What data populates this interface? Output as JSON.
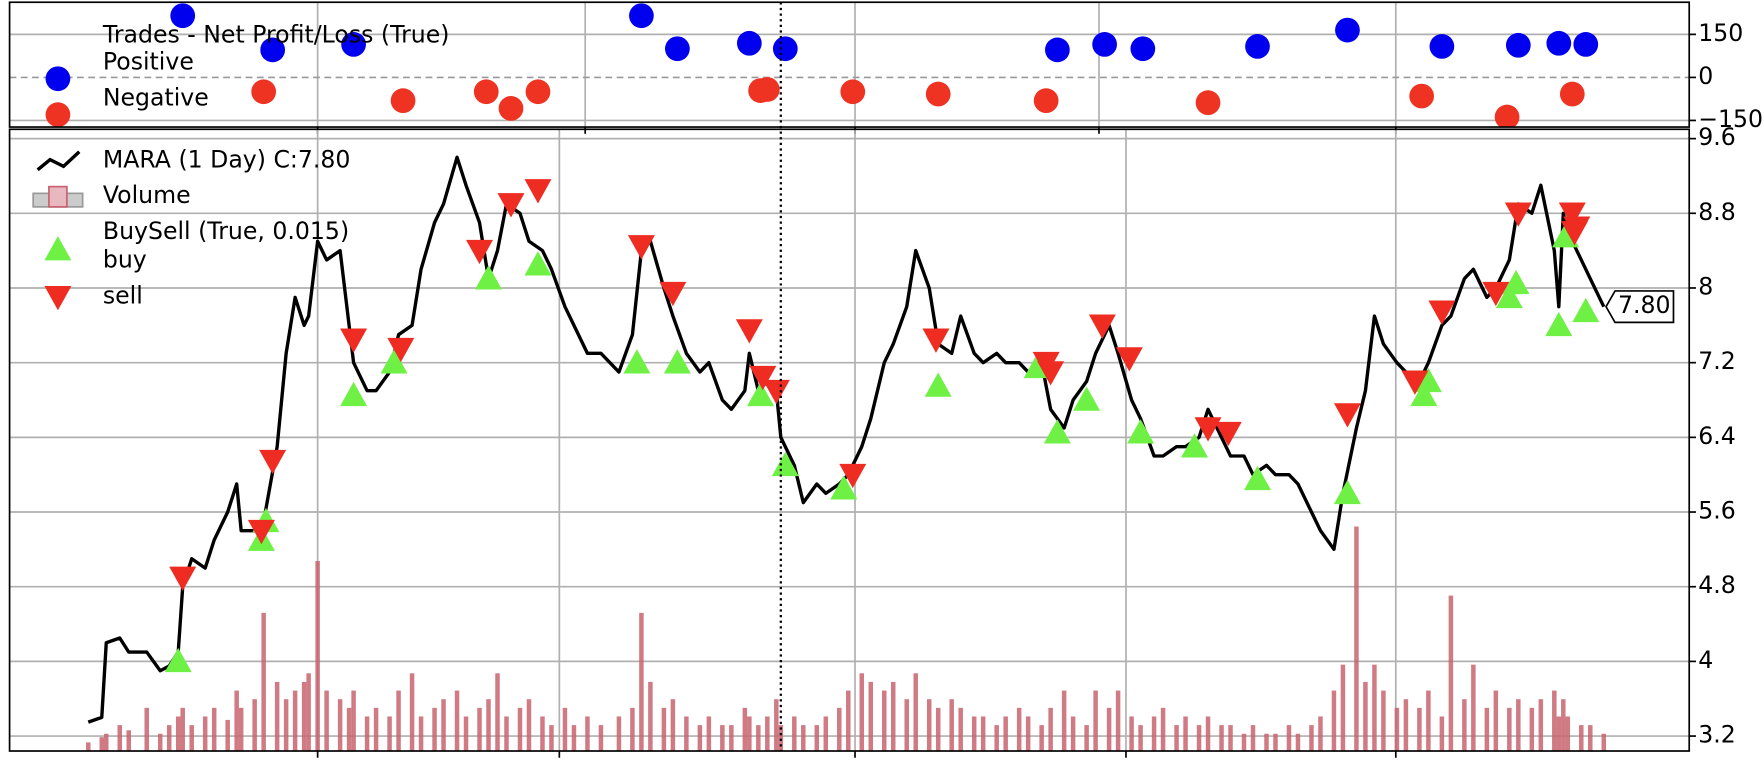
{
  "chart_data": [
    {
      "type": "scatter",
      "legend_title": "Trades - Net Profit/Loss (True)",
      "xlim": [
        -17.5,
        356
      ],
      "xticks": [
        51,
        110.5,
        170.5,
        224.75,
        290.75
      ],
      "ylim": [
        -173,
        262
      ],
      "yticks": [
        150,
        0,
        {
          "value": -150,
          "label": "−150"
        }
      ],
      "grid": true,
      "zero_line": true,
      "legend": "upper left",
      "series": [
        {
          "name": "Positive",
          "color": "#0000ee",
          "marker": "o",
          "x": [
            21,
            41,
            59,
            123,
            131,
            147,
            155,
            215.5,
            226,
            234.5,
            260,
            280,
            301,
            318,
            327,
            333
          ],
          "values": [
            215,
            96,
            115,
            215,
            100,
            119,
            100,
            96,
            115,
            100,
            108,
            165,
            108,
            112,
            119,
            115
          ]
        },
        {
          "name": "Negative",
          "color": "#ee3322",
          "marker": "o",
          "x": [
            39,
            70,
            88.5,
            94,
            100,
            149.5,
            151,
            170,
            189,
            213,
            249,
            296.5,
            315.5,
            330
          ],
          "values": [
            -50,
            -81,
            -50,
            -108,
            -50,
            -46,
            -42,
            -50,
            -58,
            -81,
            -88,
            -65,
            -138,
            -58
          ]
        }
      ]
    },
    {
      "type": "line",
      "xlim": [
        -17.5,
        356
      ],
      "xticks": [
        51,
        104.75,
        170.5,
        230.75,
        290.75
      ],
      "ylim": [
        3.04,
        9.7
      ],
      "yticks": [
        3.2,
        4.0,
        4.8,
        5.6,
        6.4,
        7.2,
        8.0,
        8.8,
        9.6
      ],
      "y2lim": [
        0,
        36
      ],
      "grid": true,
      "legend": "upper left",
      "legend_group": "BuySell (True, 0.015)",
      "last_value_label": "7.80",
      "series": [
        {
          "name": "MARA (1 Day) C:7.80",
          "color": "#000000",
          "kind": "line",
          "x": [
            0,
            3,
            4,
            7,
            9,
            13,
            16,
            18,
            20,
            21,
            23,
            26,
            28,
            31,
            33,
            34,
            37,
            39,
            42,
            44,
            46,
            48,
            49,
            51,
            53,
            56,
            58,
            59,
            62,
            64,
            67,
            69,
            72,
            74,
            77,
            79,
            82,
            84,
            87,
            89,
            91,
            93,
            96,
            98,
            101,
            103,
            106,
            108,
            111,
            114,
            118,
            121,
            123,
            125,
            128,
            130,
            133,
            136,
            138,
            141,
            143,
            146,
            147,
            149,
            151,
            153,
            154,
            157,
            159,
            162,
            164,
            167,
            169,
            172,
            174,
            177,
            179,
            182,
            184,
            187,
            189,
            192,
            194,
            197,
            199,
            202,
            204,
            207,
            209,
            212,
            214,
            217,
            219,
            222,
            224,
            227,
            229,
            232,
            234,
            237,
            239,
            242,
            244,
            247,
            249,
            252,
            254,
            257,
            259,
            262,
            264,
            267,
            269,
            272,
            274,
            277,
            279,
            282,
            284,
            286,
            288,
            291,
            293,
            296,
            298,
            301,
            303,
            306,
            308,
            311,
            313,
            316,
            318,
            321,
            323,
            326,
            327,
            328,
            329,
            332,
            334,
            337
          ],
          "values": [
            3.35,
            3.4,
            4.2,
            4.25,
            4.1,
            4.1,
            3.9,
            3.95,
            4.1,
            4.8,
            5.1,
            5.0,
            5.3,
            5.6,
            5.9,
            5.4,
            5.4,
            5.5,
            6.3,
            7.3,
            7.9,
            7.6,
            7.7,
            8.5,
            8.3,
            8.4,
            7.6,
            7.2,
            6.9,
            6.9,
            7.1,
            7.5,
            7.6,
            8.2,
            8.7,
            8.9,
            9.4,
            9.1,
            8.7,
            8.1,
            8.4,
            8.9,
            8.8,
            8.5,
            8.4,
            8.2,
            7.8,
            7.6,
            7.3,
            7.3,
            7.1,
            7.5,
            8.4,
            8.5,
            8.0,
            7.7,
            7.3,
            7.1,
            7.2,
            6.8,
            6.7,
            6.9,
            7.3,
            6.9,
            7.0,
            6.9,
            6.4,
            6.1,
            5.7,
            5.9,
            5.8,
            5.9,
            6.0,
            6.3,
            6.6,
            7.2,
            7.4,
            7.8,
            8.4,
            8.0,
            7.4,
            7.3,
            7.7,
            7.3,
            7.2,
            7.3,
            7.2,
            7.2,
            7.1,
            7.2,
            6.7,
            6.5,
            6.8,
            7.0,
            7.3,
            7.6,
            7.3,
            6.8,
            6.6,
            6.2,
            6.2,
            6.3,
            6.3,
            6.4,
            6.7,
            6.4,
            6.2,
            6.2,
            6.0,
            6.1,
            6.0,
            6.0,
            5.9,
            5.6,
            5.4,
            5.2,
            5.8,
            6.5,
            6.9,
            7.7,
            7.4,
            7.2,
            7.1,
            7.0,
            7.2,
            7.6,
            7.7,
            8.1,
            8.2,
            7.9,
            8.0,
            8.3,
            8.9,
            8.8,
            9.1,
            8.4,
            7.8,
            8.8,
            8.6,
            8.3,
            8.1,
            7.8
          ]
        },
        {
          "name": "Volume",
          "kind": "bar",
          "axis": "y2",
          "color": "#c8636f",
          "up_color": "#aaaaaa",
          "x": [
            0,
            3,
            4,
            7,
            9,
            13,
            16,
            18,
            20,
            21,
            23,
            26,
            28,
            31,
            33,
            34,
            37,
            39,
            42,
            44,
            46,
            48,
            49,
            51,
            53,
            56,
            58,
            59,
            62,
            64,
            67,
            69,
            72,
            74,
            77,
            79,
            82,
            84,
            87,
            89,
            91,
            93,
            96,
            98,
            101,
            103,
            106,
            108,
            111,
            114,
            118,
            121,
            123,
            125,
            128,
            130,
            133,
            136,
            138,
            141,
            143,
            146,
            147,
            149,
            151,
            153,
            154,
            157,
            159,
            162,
            164,
            167,
            169,
            172,
            174,
            177,
            179,
            182,
            184,
            187,
            189,
            192,
            194,
            197,
            199,
            202,
            204,
            207,
            209,
            212,
            214,
            217,
            219,
            222,
            224,
            227,
            229,
            232,
            234,
            237,
            239,
            242,
            244,
            247,
            249,
            252,
            254,
            257,
            259,
            262,
            264,
            267,
            269,
            272,
            274,
            277,
            279,
            282,
            284,
            286,
            288,
            291,
            293,
            296,
            298,
            301,
            303,
            306,
            308,
            311,
            313,
            316,
            318,
            321,
            323,
            326,
            327,
            328,
            329,
            332,
            334,
            337
          ],
          "values": [
            0.5,
            0.8,
            1.0,
            1.5,
            1.2,
            2.5,
            1.0,
            1.5,
            2.0,
            2.5,
            1.5,
            2.0,
            2.5,
            1.8,
            3.5,
            2.5,
            3.0,
            8.0,
            4.0,
            3.0,
            3.5,
            4.0,
            4.5,
            11.0,
            3.5,
            3.0,
            2.5,
            3.5,
            2.0,
            2.5,
            2.0,
            3.5,
            4.5,
            2.0,
            2.5,
            3.0,
            3.5,
            2.0,
            2.5,
            3.0,
            4.5,
            2.0,
            2.5,
            3.0,
            2.0,
            1.5,
            2.5,
            1.5,
            2.0,
            1.5,
            2.0,
            2.5,
            8.0,
            4.0,
            2.5,
            3.0,
            2.0,
            1.5,
            2.0,
            1.5,
            1.5,
            2.5,
            2.0,
            1.5,
            2.0,
            3.0,
            1.5,
            2.0,
            1.5,
            1.5,
            2.0,
            2.5,
            3.5,
            4.5,
            4.0,
            3.5,
            4.0,
            3.0,
            4.5,
            3.0,
            2.5,
            3.0,
            2.5,
            2.0,
            2.0,
            1.5,
            2.0,
            2.5,
            2.0,
            1.5,
            2.5,
            3.5,
            2.0,
            1.5,
            3.5,
            2.5,
            3.5,
            2.0,
            1.5,
            2.0,
            2.5,
            1.5,
            2.0,
            1.5,
            2.0,
            1.5,
            1.5,
            1.0,
            1.5,
            1.0,
            1.0,
            1.5,
            1.0,
            1.5,
            2.0,
            3.5,
            5.0,
            13.0,
            4.0,
            5.0,
            3.5,
            2.5,
            3.0,
            2.5,
            3.5,
            2.0,
            9.0,
            3.0,
            5.0,
            2.5,
            3.5,
            2.5,
            3.0,
            2.5,
            3.0,
            3.5,
            2.0,
            3.0,
            2.0,
            1.5,
            1.5,
            1.0
          ]
        },
        {
          "name": "buy",
          "kind": "marker",
          "marker": "^",
          "color": "#6ef044",
          "x": [
            20,
            38.5,
            39.5,
            59,
            68,
            89,
            100,
            122,
            131,
            149.5,
            155,
            168,
            189,
            211,
            215.5,
            222,
            234,
            246,
            260,
            280,
            297,
            298,
            316,
            317.5,
            327,
            328.5,
            333
          ],
          "values": [
            4.0,
            5.3,
            5.5,
            6.85,
            7.2,
            8.1,
            8.25,
            7.2,
            7.2,
            6.85,
            6.1,
            5.85,
            6.95,
            7.15,
            6.45,
            6.8,
            6.45,
            6.3,
            5.95,
            5.8,
            6.85,
            7.0,
            7.9,
            8.05,
            7.6,
            8.55,
            7.75
          ]
        },
        {
          "name": "sell",
          "kind": "marker",
          "marker": "v",
          "color": "#ee2c22",
          "x": [
            21,
            38.5,
            41,
            59,
            69.5,
            87,
            94,
            100,
            123,
            130,
            147,
            150,
            153,
            170,
            188.5,
            213,
            214,
            225.5,
            231.5,
            249,
            253.5,
            280,
            295,
            301,
            313,
            318,
            330,
            330.5,
            331
          ],
          "values": [
            4.9,
            5.4,
            6.15,
            7.45,
            7.35,
            8.4,
            8.9,
            9.05,
            8.45,
            7.95,
            7.55,
            7.05,
            6.9,
            6.0,
            7.45,
            7.2,
            7.1,
            7.6,
            7.25,
            6.5,
            6.45,
            6.65,
            7.0,
            7.75,
            7.95,
            8.8,
            8.8,
            8.6,
            8.65
          ]
        }
      ]
    }
  ]
}
